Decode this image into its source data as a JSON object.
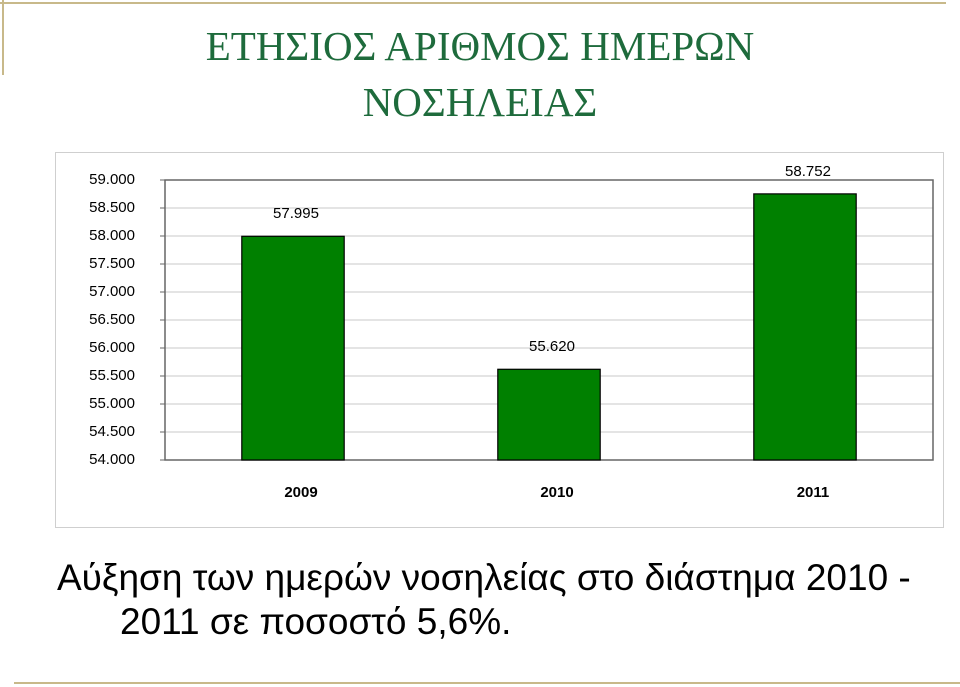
{
  "chart_data": {
    "type": "bar",
    "title": "ΕΤΗΣΙΟΣ ΑΡΙΘΜΟΣ ΗΜΕΡΩΝ ΝΟΣΗΛΕΙΑΣ",
    "categories": [
      "2009",
      "2010",
      "2011"
    ],
    "values": [
      57995,
      55620,
      58752
    ],
    "value_labels": [
      "57.995",
      "55.620",
      "58.752"
    ],
    "color": "#008000",
    "ylim": [
      54000,
      59000
    ],
    "yticks": [
      {
        "value": 54000,
        "label": "54.000"
      },
      {
        "value": 54500,
        "label": "54.500"
      },
      {
        "value": 55000,
        "label": "55.000"
      },
      {
        "value": 55500,
        "label": "55.500"
      },
      {
        "value": 56000,
        "label": "56.000"
      },
      {
        "value": 56500,
        "label": "56.500"
      },
      {
        "value": 57000,
        "label": "57.000"
      },
      {
        "value": 57500,
        "label": "57.500"
      },
      {
        "value": 58000,
        "label": "58.000"
      },
      {
        "value": 58500,
        "label": "58.500"
      },
      {
        "value": 59000,
        "label": "59.000"
      }
    ],
    "grid": true,
    "caption": "Αύξηση των ημερών νοσηλείας στο διάστημα 2010 - 2011 σε ποσοστό 5,6%."
  }
}
